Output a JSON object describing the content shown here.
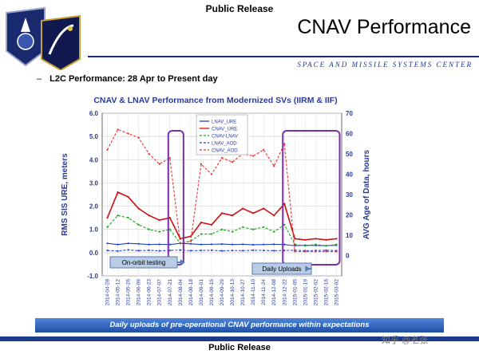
{
  "header": {
    "release_label": "Public Release",
    "title": "CNAV Performance",
    "org_line": "SPACE AND MISSILE SYSTEMS CENTER"
  },
  "bullet": {
    "dash": "–",
    "text": "L2C Performance: 28 Apr to Present day"
  },
  "banner_text": "Daily uploads of  pre-operational CNAV performance within expectations",
  "footer": {
    "release_label": "Public Release",
    "watermark": "知乎 @老张"
  },
  "colors": {
    "lnav_ure": "#1f3fd0",
    "cnav_ure": "#cc1010",
    "cnav_lnav": "#19a319",
    "lnav_aod": "#2a3fd0",
    "cnav_aod": "#e83030",
    "highlight_box": "#7a2ea8",
    "annotation_fill": "#b8cce4",
    "banner": "#2f63c0"
  },
  "chart_data": {
    "type": "line",
    "title": "CNAV & LNAV Performance from Modernized SVs (IIRM & IIF)",
    "ylabel": "RMS SIS URE, meters",
    "y2label": "AVG Age of Data, hours",
    "ylim": [
      -1.0,
      6.0
    ],
    "y2lim": [
      -10,
      70
    ],
    "yticks": [
      "-1.0",
      "0.0",
      "1.0",
      "2.0",
      "3.0",
      "4.0",
      "5.0",
      "6.0"
    ],
    "y2ticks": [
      "0",
      "10",
      "20",
      "30",
      "40",
      "50",
      "60",
      "70"
    ],
    "x": [
      "2014-04-28",
      "2014-05-12",
      "2014-05-26",
      "2014-06-09",
      "2014-06-23",
      "2014-07-07",
      "2014-07-21",
      "2014-08-04",
      "2014-08-18",
      "2014-09-01",
      "2014-09-15",
      "2014-09-29",
      "2014-10-13",
      "2014-10-27",
      "2014-11-10",
      "2014-11-24",
      "2014-12-08",
      "2014-12-22",
      "2015-01-05",
      "2015-01-19",
      "2015-02-02",
      "2015-02-16",
      "2015-03-02"
    ],
    "grid": true,
    "legend_position": "top-center",
    "legend": [
      "LNAV_URE",
      "CNAV_URE",
      "CNAV-LNAV",
      "LNAV_AOD",
      "CNAV_AOD"
    ],
    "series": [
      {
        "name": "LNAV_URE",
        "axis": "left",
        "style": "solid",
        "values": [
          0.4,
          0.35,
          0.4,
          0.38,
          0.35,
          0.36,
          0.35,
          0.4,
          0.38,
          0.35,
          0.36,
          0.37,
          0.35,
          0.36,
          0.34,
          0.35,
          0.36,
          0.35,
          0.3,
          0.32,
          0.31,
          0.3,
          0.32
        ]
      },
      {
        "name": "CNAV_URE",
        "axis": "left",
        "style": "solid",
        "values": [
          1.5,
          2.6,
          2.4,
          1.9,
          1.6,
          1.4,
          1.5,
          0.6,
          0.7,
          1.3,
          1.2,
          1.7,
          1.6,
          1.9,
          1.7,
          1.9,
          1.6,
          2.1,
          0.6,
          0.55,
          0.6,
          0.55,
          0.6
        ]
      },
      {
        "name": "CNAV-LNAV",
        "axis": "left",
        "style": "dashed",
        "values": [
          1.1,
          1.6,
          1.5,
          1.2,
          1.0,
          0.9,
          1.0,
          0.4,
          0.5,
          0.8,
          0.8,
          1.0,
          0.9,
          1.1,
          1.0,
          1.1,
          0.9,
          1.2,
          0.35,
          0.3,
          0.35,
          0.3,
          0.35
        ]
      },
      {
        "name": "LNAV_AOD",
        "axis": "right",
        "style": "dashed",
        "values": [
          2.5,
          2.2,
          2.8,
          2.4,
          2.6,
          2.3,
          2.5,
          2.7,
          2.4,
          2.5,
          2.6,
          2.3,
          2.5,
          2.4,
          2.6,
          2.5,
          2.4,
          2.5,
          2.6,
          2.4,
          2.5,
          2.6,
          2.4
        ]
      },
      {
        "name": "CNAV_AOD",
        "axis": "right",
        "style": "dashed",
        "values": [
          52,
          62,
          60,
          58,
          50,
          45,
          48,
          6,
          7,
          45,
          40,
          48,
          46,
          50,
          49,
          52,
          44,
          55,
          2,
          2,
          2,
          2,
          2
        ]
      }
    ],
    "annotations": [
      {
        "text": "On-orbit testing",
        "x_end": "2014-08-04"
      },
      {
        "text": "Daily Uploads",
        "x_end": "2015-01-19"
      }
    ],
    "highlight_ranges": [
      {
        "from": "2014-07-21",
        "to": "2014-08-04"
      },
      {
        "from": "2014-12-22",
        "to": "2015-03-02"
      }
    ]
  }
}
